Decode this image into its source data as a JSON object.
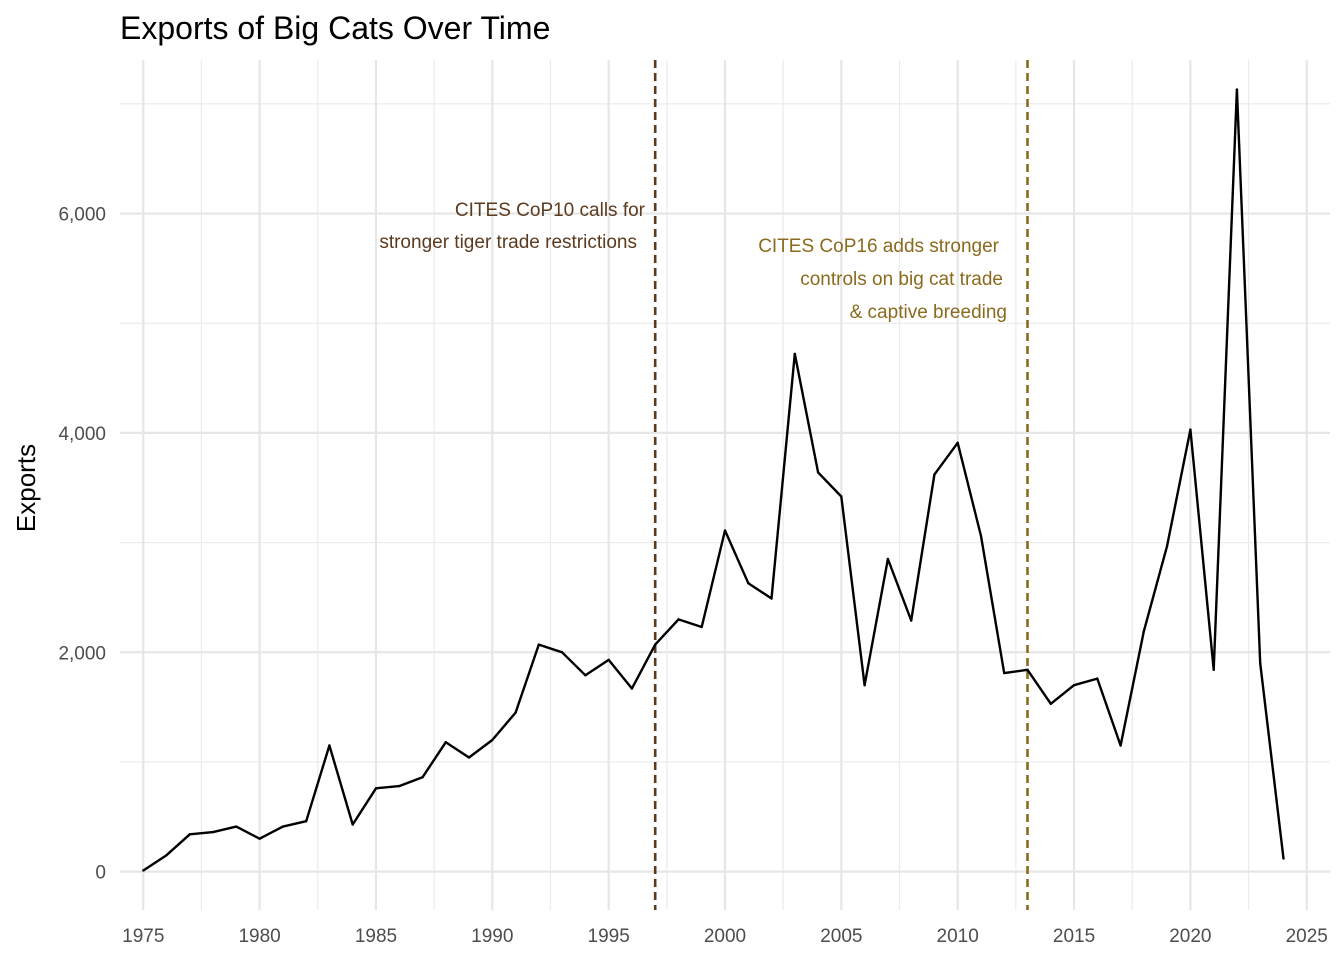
{
  "chart_data": {
    "type": "line",
    "title": "Exports of Big Cats Over Time",
    "xlabel": "",
    "ylabel": "Exports",
    "xlim": [
      1974,
      2026
    ],
    "ylim": [
      -350,
      7400
    ],
    "grid": true,
    "x_ticks": [
      1975,
      1980,
      1985,
      1990,
      1995,
      2000,
      2005,
      2010,
      2015,
      2020,
      2025
    ],
    "y_ticks": [
      0,
      2000,
      4000,
      6000
    ],
    "y_tick_labels": [
      "0",
      "2,000",
      "4,000",
      "6,000"
    ],
    "series": [
      {
        "color": "#000000",
        "x": [
          1975,
          1976,
          1977,
          1978,
          1979,
          1980,
          1981,
          1982,
          1983,
          1984,
          1985,
          1986,
          1987,
          1988,
          1989,
          1990,
          1991,
          1992,
          1993,
          1994,
          1995,
          1996,
          1997,
          1998,
          1999,
          2000,
          2001,
          2002,
          2003,
          2004,
          2005,
          2006,
          2007,
          2008,
          2009,
          2010,
          2011,
          2012,
          2013,
          2014,
          2015,
          2016,
          2017,
          2018,
          2019,
          2020,
          2021,
          2022,
          2023,
          2024
        ],
        "y": [
          10,
          150,
          340,
          360,
          410,
          300,
          410,
          460,
          1150,
          430,
          760,
          780,
          860,
          1180,
          1040,
          1200,
          1450,
          2070,
          2000,
          1790,
          1930,
          1670,
          2070,
          2300,
          2230,
          3110,
          2630,
          2490,
          4720,
          3640,
          3420,
          1700,
          2850,
          2290,
          3620,
          3910,
          3060,
          1810,
          1840,
          1530,
          1700,
          1760,
          1150,
          2190,
          2970,
          4030,
          1840,
          7130,
          1900,
          120
        ]
      }
    ],
    "annotations": [
      {
        "x": 1997,
        "color": "#5c3a1e",
        "lines": [
          "CITES CoP10 calls for",
          "stronger tiger trade restrictions"
        ]
      },
      {
        "x": 2013,
        "color": "#8b6a1e",
        "lines": [
          "CITES CoP16 adds stronger",
          "controls on big cat trade",
          "& captive breeding"
        ]
      }
    ]
  }
}
